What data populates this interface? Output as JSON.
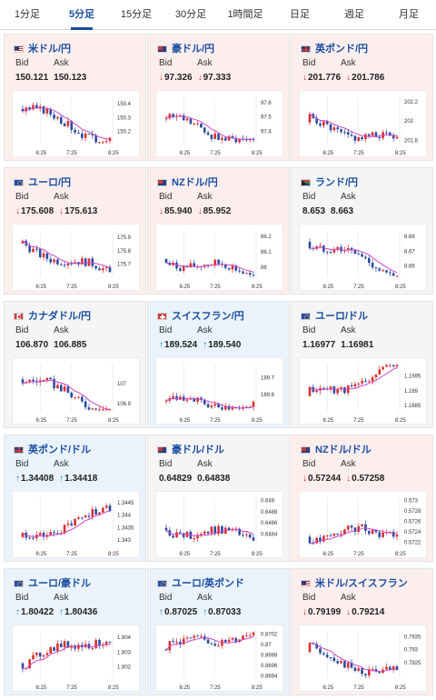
{
  "tabs": [
    "1分足",
    "5分足",
    "15分足",
    "30分足",
    "1時間足",
    "日足",
    "週足",
    "月足"
  ],
  "active_tab": 1,
  "labels": {
    "bid": "Bid",
    "ask": "Ask"
  },
  "cards": [
    {
      "name": "米ドル/円",
      "flag": "us",
      "trend": "down",
      "arrow": "",
      "bid": "150.121",
      "ask": "150.123",
      "chart_data": {
        "type": "candlestick",
        "x_ticks": [
          "6:25",
          "7:25",
          "8:25"
        ],
        "y_ticks": [
          "150.4",
          "150.3",
          "150.2"
        ],
        "ylim": [
          150.11,
          150.45
        ],
        "open": 150.36,
        "close": 150.14,
        "peak": 150.44
      }
    },
    {
      "name": "豪ドル/円",
      "flag": "au",
      "trend": "down",
      "arrow": "down",
      "bid": "97.326",
      "ask": "97.333",
      "chart_data": {
        "type": "candlestick",
        "x_ticks": [
          "6:25",
          "7:25",
          "8:25"
        ],
        "y_ticks": [
          "97.6",
          "97.5",
          "97.4"
        ],
        "ylim": [
          97.31,
          97.64
        ],
        "open": 97.48,
        "close": 97.33,
        "peak": 97.62
      }
    },
    {
      "name": "英ポンド/円",
      "flag": "gb",
      "trend": "down",
      "arrow": "down",
      "bid": "201.776",
      "ask": "201.786",
      "chart_data": {
        "type": "candlestick",
        "x_ticks": [
          "6:25",
          "7:25",
          "8:25"
        ],
        "y_ticks": [
          "202.2",
          "202",
          "201.8"
        ],
        "ylim": [
          201.76,
          202.25
        ],
        "open": 201.98,
        "close": 201.78,
        "peak": 202.23
      }
    },
    {
      "name": "ユーロ/円",
      "flag": "eu",
      "trend": "down",
      "arrow": "down",
      "bid": "175.608",
      "ask": "175.613",
      "chart_data": {
        "type": "candlestick",
        "x_ticks": [
          "6:25",
          "7:25",
          "8:25"
        ],
        "y_ticks": [
          "175.9",
          "175.8",
          "175.7"
        ],
        "ylim": [
          175.6,
          175.95
        ],
        "open": 175.85,
        "close": 175.61,
        "peak": 175.93
      }
    },
    {
      "name": "NZドル/円",
      "flag": "nz",
      "trend": "down",
      "arrow": "down",
      "bid": "85.940",
      "ask": "85.952",
      "chart_data": {
        "type": "candlestick",
        "x_ticks": [
          "6:25",
          "7:25",
          "8:25"
        ],
        "y_ticks": [
          "86.2",
          "86.1",
          "86"
        ],
        "ylim": [
          85.93,
          86.24
        ],
        "open": 86.05,
        "close": 85.94,
        "peak": 86.21
      }
    },
    {
      "name": "ランド/円",
      "flag": "za",
      "trend": "flat",
      "arrow": "",
      "bid": "8.653",
      "ask": "8.663",
      "chart_data": {
        "type": "candlestick",
        "x_ticks": [
          "6:25",
          "7:25",
          "8:25"
        ],
        "y_ticks": [
          "8.68",
          "8.67",
          "8.66"
        ],
        "ylim": [
          8.652,
          8.684
        ],
        "open": 8.676,
        "close": 8.654,
        "peak": 8.682
      }
    },
    {
      "name": "カナダドル/円",
      "flag": "ca",
      "trend": "flat",
      "arrow": "",
      "bid": "106.870",
      "ask": "106.885",
      "chart_data": {
        "type": "candlestick",
        "x_ticks": [
          "6:25",
          "7:25",
          "8:25"
        ],
        "y_ticks": [
          "107",
          "106.9"
        ],
        "ylim": [
          106.86,
          107.1
        ],
        "open": 107.02,
        "close": 106.87,
        "peak": 107.08
      }
    },
    {
      "name": "スイスフラン/円",
      "flag": "ch",
      "trend": "up",
      "arrow": "up",
      "bid": "189.524",
      "ask": "189.540",
      "chart_data": {
        "type": "candlestick",
        "x_ticks": [
          "6:25",
          "7:25",
          "8:25"
        ],
        "y_ticks": [
          "189.7",
          "189.6"
        ],
        "ylim": [
          189.5,
          189.78
        ],
        "open": 189.56,
        "close": 189.53,
        "peak": 189.76
      }
    },
    {
      "name": "ユーロ/ドル",
      "flag": "eu",
      "trend": "flat",
      "arrow": "",
      "bid": "1.16977",
      "ask": "1.16981",
      "chart_data": {
        "type": "candlestick",
        "x_ticks": [
          "6:25",
          "7:25",
          "8:25"
        ],
        "y_ticks": [
          "1.1695",
          "1.169",
          "1.1685"
        ],
        "ylim": [
          1.1683,
          1.1699
        ],
        "open": 1.1688,
        "close": 1.1698,
        "peak": 1.1699
      }
    },
    {
      "name": "英ポンド/ドル",
      "flag": "gb",
      "trend": "up",
      "arrow": "up",
      "bid": "1.34408",
      "ask": "1.34418",
      "chart_data": {
        "type": "candlestick",
        "x_ticks": [
          "6:25",
          "7:25",
          "8:25"
        ],
        "y_ticks": [
          "1.3445",
          "1.344",
          "1.3435",
          "1.343"
        ],
        "ylim": [
          1.3428,
          1.3447
        ],
        "open": 1.3431,
        "close": 1.3441,
        "peak": 1.3446
      }
    },
    {
      "name": "豪ドル/ドル",
      "flag": "au",
      "trend": "flat",
      "arrow": "",
      "bid": "0.64829",
      "ask": "0.64838",
      "chart_data": {
        "type": "candlestick",
        "x_ticks": [
          "6:25",
          "7:25",
          "8:25"
        ],
        "y_ticks": [
          "0.649",
          "0.6488",
          "0.6486",
          "0.6484"
        ],
        "ylim": [
          0.6482,
          0.64905
        ],
        "open": 0.6485,
        "close": 0.6483,
        "peak": 0.649
      }
    },
    {
      "name": "NZドル/ドル",
      "flag": "nz",
      "trend": "down",
      "arrow": "down",
      "bid": "0.57244",
      "ask": "0.57258",
      "chart_data": {
        "type": "candlestick",
        "x_ticks": [
          "6:25",
          "7:25",
          "8:25"
        ],
        "y_ticks": [
          "0.573",
          "0.5728",
          "0.5726",
          "0.5724",
          "0.5722"
        ],
        "ylim": [
          0.57215,
          0.57305
        ],
        "open": 0.5723,
        "close": 0.5724,
        "peak": 0.573
      }
    },
    {
      "name": "ユーロ/豪ドル",
      "flag": "eu",
      "trend": "up",
      "arrow": "up",
      "bid": "1.80422",
      "ask": "1.80436",
      "chart_data": {
        "type": "candlestick",
        "x_ticks": [
          "6:25",
          "7:25",
          "8:25"
        ],
        "y_ticks": [
          "1.804",
          "1.803",
          "1.802"
        ],
        "ylim": [
          1.8012,
          1.8044
        ],
        "open": 1.8022,
        "close": 1.8042,
        "peak": 1.8043
      }
    },
    {
      "name": "ユーロ/英ポンド",
      "flag": "eu",
      "trend": "up",
      "arrow": "up",
      "bid": "0.87025",
      "ask": "0.87033",
      "chart_data": {
        "type": "candlestick",
        "x_ticks": [
          "6:25",
          "7:25",
          "8:25"
        ],
        "y_ticks": [
          "0.8702",
          "0.87",
          "0.8698",
          "0.8696",
          "0.8694"
        ],
        "ylim": [
          0.86935,
          0.87025
        ],
        "open": 0.8699,
        "close": 0.87025,
        "peak": 0.87025
      }
    },
    {
      "name": "米ドル/スイスフラン",
      "flag": "us",
      "trend": "down",
      "arrow": "down",
      "bid": "0.79199",
      "ask": "0.79214",
      "chart_data": {
        "type": "candlestick",
        "x_ticks": [
          "6:25",
          "7:25",
          "8:25"
        ],
        "y_ticks": [
          "0.7935",
          "0.793",
          "0.7925"
        ],
        "ylim": [
          0.7919,
          0.7937
        ],
        "open": 0.7929,
        "close": 0.792,
        "peak": 0.7936
      }
    }
  ],
  "colors": {
    "bull": "#d93030",
    "bear": "#2b4ba0",
    "ma": "#c847c8",
    "grid": "#eeeeee",
    "link": "#1a4ea1"
  }
}
